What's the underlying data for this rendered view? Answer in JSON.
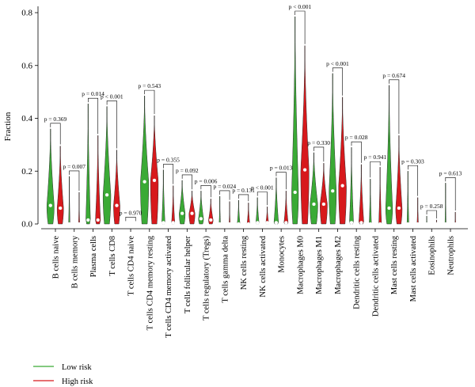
{
  "chart_data": {
    "type": "violin",
    "ylabel": "Fraction",
    "ylim": [
      0,
      0.82
    ],
    "yticks": [
      "0.0",
      "0.2",
      "0.4",
      "0.6",
      "0.8"
    ],
    "ytick_values": [
      0.0,
      0.2,
      0.4,
      0.6,
      0.8
    ],
    "grid": false,
    "legend_position": "bottom-left",
    "series": [
      {
        "name": "Low risk",
        "color": "#3aaa35"
      },
      {
        "name": "High risk",
        "color": "#d7191c"
      }
    ],
    "categories": [
      {
        "label": "B cells naive",
        "pvalue": "p = 0.369",
        "low": {
          "max": 0.36,
          "median": 0.07,
          "width": 0.8
        },
        "high": {
          "max": 0.295,
          "median": 0.06,
          "width": 0.7
        }
      },
      {
        "label": "B cells memory",
        "pvalue": "p = 0.007",
        "low": {
          "max": 0.18,
          "median": 0.0,
          "width": 0.15
        },
        "high": {
          "max": 0.12,
          "median": 0.0,
          "width": 0.12
        }
      },
      {
        "label": "Plasma cells",
        "pvalue": "p = 0.014",
        "low": {
          "max": 0.455,
          "median": 0.015,
          "width": 0.5
        },
        "high": {
          "max": 0.335,
          "median": 0.015,
          "width": 0.55
        }
      },
      {
        "label": "T cells CD8",
        "pvalue": "p < 0.001",
        "low": {
          "max": 0.445,
          "median": 0.11,
          "width": 0.85
        },
        "high": {
          "max": 0.28,
          "median": 0.07,
          "width": 0.7
        }
      },
      {
        "label": "T cells CD4 naive",
        "pvalue": "p = 0.970",
        "low": {
          "max": 0.005,
          "median": 0.0,
          "width": 0.05
        },
        "high": {
          "max": 0.005,
          "median": 0.0,
          "width": 0.05
        }
      },
      {
        "label": "T cells CD4 memory resting",
        "pvalue": "p = 0.543",
        "low": {
          "max": 0.485,
          "median": 0.16,
          "width": 0.9
        },
        "high": {
          "max": 0.41,
          "median": 0.165,
          "width": 0.85
        }
      },
      {
        "label": "T cells CD4 memory activated",
        "pvalue": "p = 0.355",
        "low": {
          "max": 0.205,
          "median": 0.005,
          "width": 0.35
        },
        "high": {
          "max": 0.145,
          "median": 0.005,
          "width": 0.35
        }
      },
      {
        "label": "T cells follicular helper",
        "pvalue": "p = 0.092",
        "low": {
          "max": 0.165,
          "median": 0.04,
          "width": 0.65
        },
        "high": {
          "max": 0.125,
          "median": 0.04,
          "width": 0.65
        }
      },
      {
        "label": "T cells regulatory (Tregs)",
        "pvalue": "p = 0.006",
        "low": {
          "max": 0.125,
          "median": 0.02,
          "width": 0.55
        },
        "high": {
          "max": 0.095,
          "median": 0.015,
          "width": 0.5
        }
      },
      {
        "label": "T cells gamma delta",
        "pvalue": "p = 0.024",
        "low": {
          "max": 0.105,
          "median": 0.0,
          "width": 0.15
        },
        "high": {
          "max": 0.085,
          "median": 0.0,
          "width": 0.12
        }
      },
      {
        "label": "NK cells resting",
        "pvalue": "p = 0.131",
        "low": {
          "max": 0.09,
          "median": 0.0,
          "width": 0.3
        },
        "high": {
          "max": 0.08,
          "median": 0.0,
          "width": 0.3
        }
      },
      {
        "label": "NK cells activated",
        "pvalue": "p < 0.001",
        "low": {
          "max": 0.1,
          "median": 0.005,
          "width": 0.35
        },
        "high": {
          "max": 0.065,
          "median": 0.005,
          "width": 0.3
        }
      },
      {
        "label": "Monocytes",
        "pvalue": "p = 0.013",
        "low": {
          "max": 0.175,
          "median": 0.005,
          "width": 0.5
        },
        "high": {
          "max": 0.125,
          "median": 0.005,
          "width": 0.45
        }
      },
      {
        "label": "Macrophages M0",
        "pvalue": "p < 0.001",
        "low": {
          "max": 0.785,
          "median": 0.12,
          "width": 0.75
        },
        "high": {
          "max": 0.675,
          "median": 0.205,
          "width": 0.9
        }
      },
      {
        "label": "Macrophages M1",
        "pvalue": "p = 0.330",
        "low": {
          "max": 0.27,
          "median": 0.075,
          "width": 0.85
        },
        "high": {
          "max": 0.23,
          "median": 0.075,
          "width": 0.8
        }
      },
      {
        "label": "Macrophages M2",
        "pvalue": "p < 0.001",
        "low": {
          "max": 0.57,
          "median": 0.125,
          "width": 0.8
        },
        "high": {
          "max": 0.48,
          "median": 0.145,
          "width": 0.85
        }
      },
      {
        "label": "Dendritic cells resting",
        "pvalue": "p = 0.028",
        "low": {
          "max": 0.29,
          "median": 0.005,
          "width": 0.45
        },
        "high": {
          "max": 0.225,
          "median": 0.005,
          "width": 0.55
        }
      },
      {
        "label": "Dendritic cells activated",
        "pvalue": "p = 0.941",
        "low": {
          "max": 0.17,
          "median": 0.0,
          "width": 0.25
        },
        "high": {
          "max": 0.215,
          "median": 0.0,
          "width": 0.3
        }
      },
      {
        "label": "Mast cells resting",
        "pvalue": "p = 0.674",
        "low": {
          "max": 0.525,
          "median": 0.06,
          "width": 0.75
        },
        "high": {
          "max": 0.335,
          "median": 0.06,
          "width": 0.7
        }
      },
      {
        "label": "Mast cells activated",
        "pvalue": "p = 0.303",
        "low": {
          "max": 0.2,
          "median": 0.0,
          "width": 0.2
        },
        "high": {
          "max": 0.1,
          "median": 0.0,
          "width": 0.15
        }
      },
      {
        "label": "Eosinophils",
        "pvalue": "p = 0.258",
        "low": {
          "max": 0.03,
          "median": 0.0,
          "width": 0.1
        },
        "high": {
          "max": 0.015,
          "median": 0.0,
          "width": 0.08
        }
      },
      {
        "label": "Neutrophils",
        "pvalue": "p = 0.613",
        "low": {
          "max": 0.155,
          "median": 0.0,
          "width": 0.12
        },
        "high": {
          "max": 0.045,
          "median": 0.0,
          "width": 0.1
        }
      }
    ]
  }
}
